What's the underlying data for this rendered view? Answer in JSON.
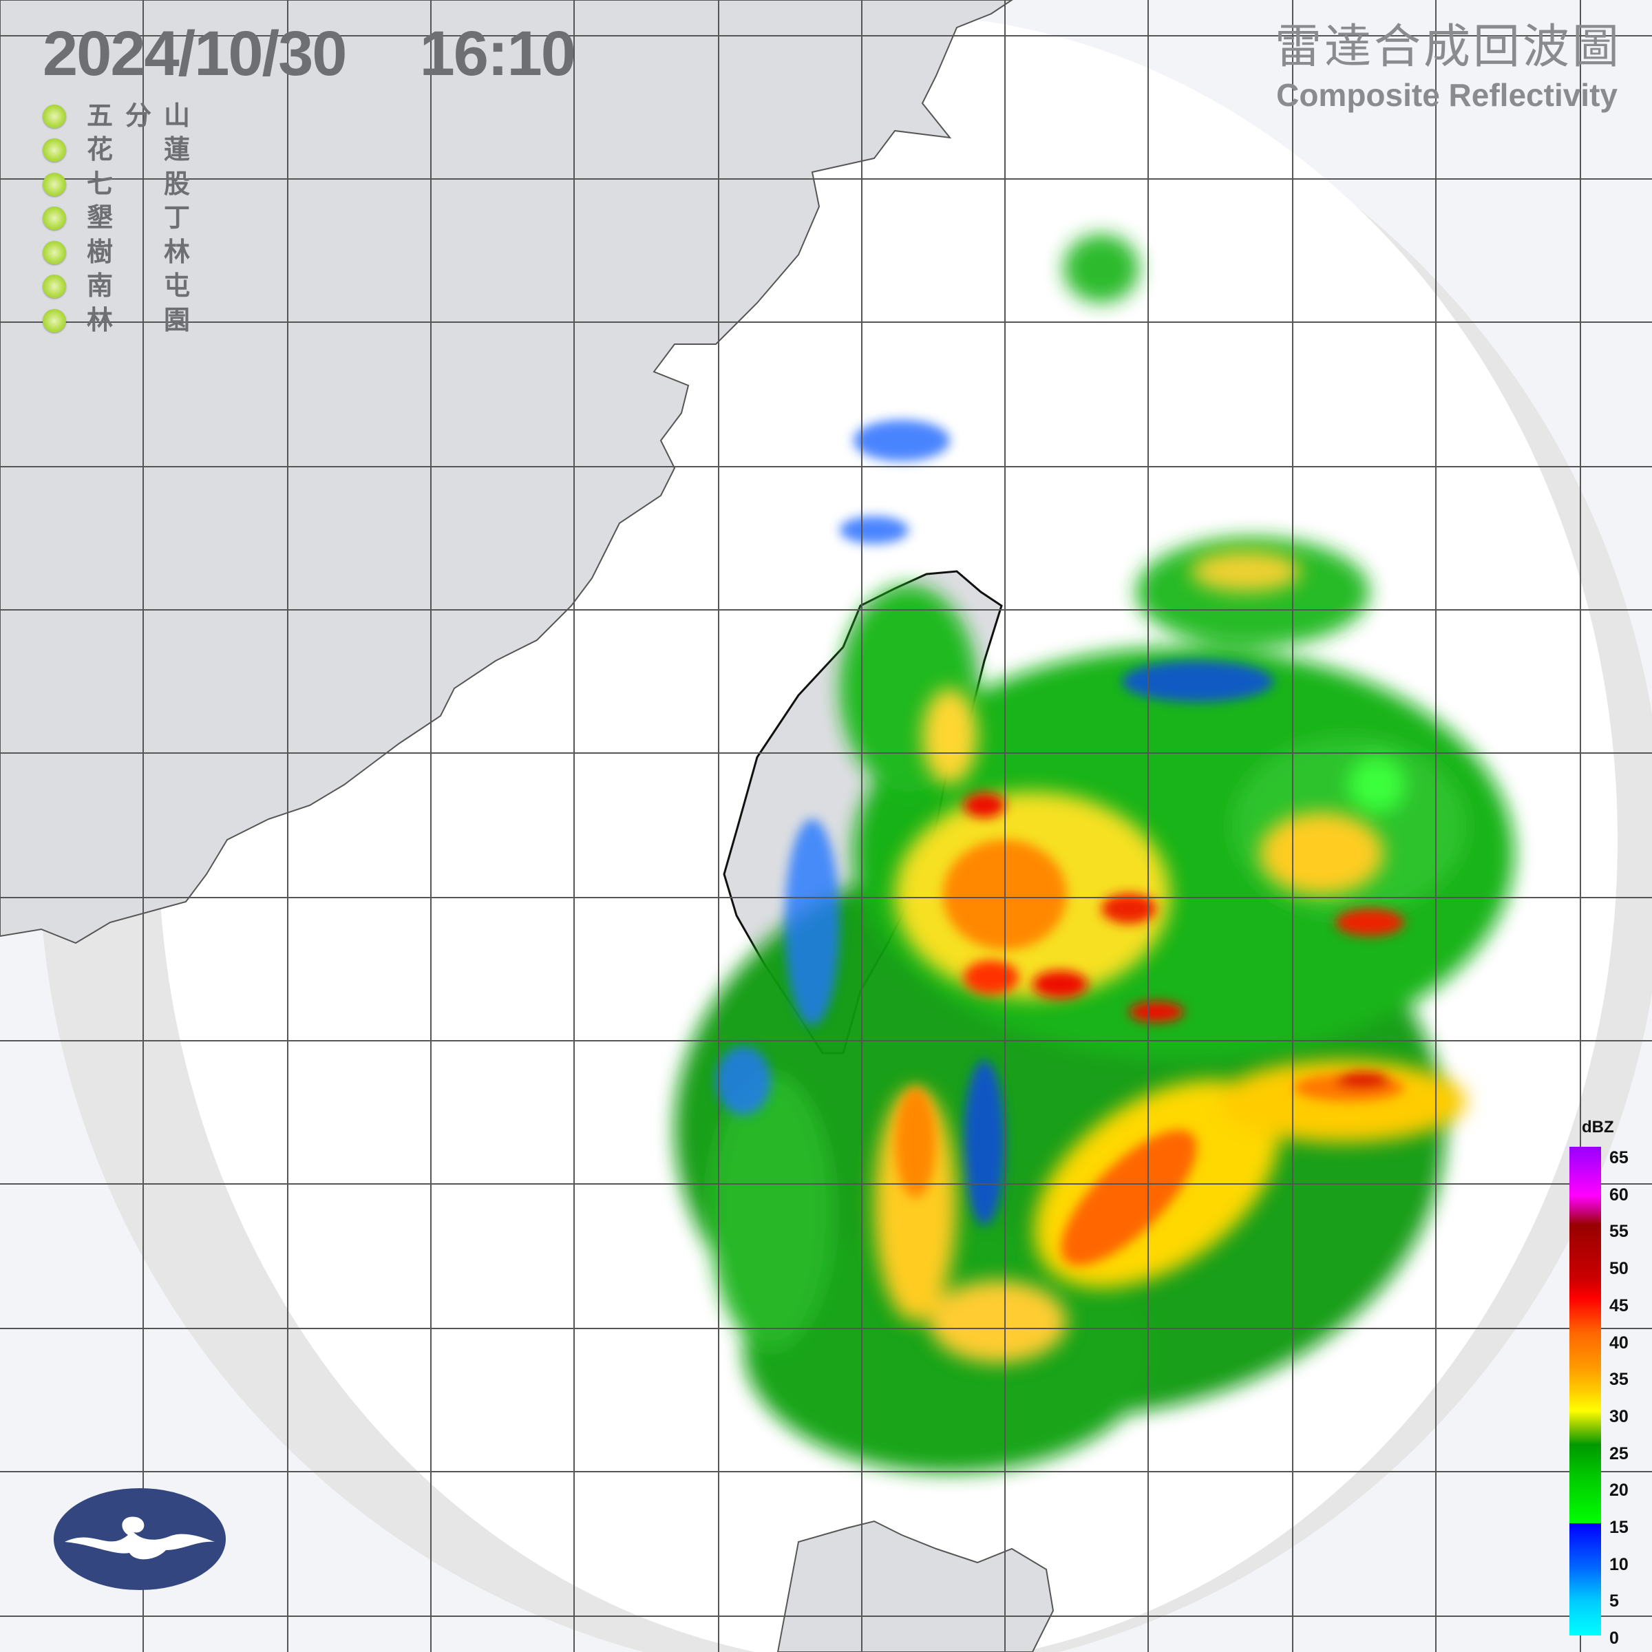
{
  "header": {
    "timestamp": "2024/10/30  16:10",
    "title_zh": "雷達合成回波圖",
    "title_en": "Composite Reflectivity"
  },
  "stations": [
    {
      "first": "五",
      "middle": "分",
      "last": "山",
      "status_color": "#a6d63a"
    },
    {
      "first": "花",
      "middle": "",
      "last": "蓮",
      "status_color": "#a6d63a"
    },
    {
      "first": "七",
      "middle": "",
      "last": "股",
      "status_color": "#a6d63a"
    },
    {
      "first": "墾",
      "middle": "",
      "last": "丁",
      "status_color": "#a6d63a"
    },
    {
      "first": "樹",
      "middle": "",
      "last": "林",
      "status_color": "#a6d63a"
    },
    {
      "first": "南",
      "middle": "",
      "last": "屯",
      "status_color": "#a6d63a"
    },
    {
      "first": "林",
      "middle": "",
      "last": "園",
      "status_color": "#a6d63a"
    }
  ],
  "legend": {
    "unit": "dBZ",
    "ticks": [
      "65",
      "60",
      "55",
      "50",
      "45",
      "40",
      "35",
      "30",
      "25",
      "20",
      "15",
      "10",
      "5",
      "0"
    ],
    "colors": [
      "#9900ff",
      "#ff00ff",
      "#990000",
      "#ff0000",
      "#ff9900",
      "#ffff00",
      "#009900",
      "#00ff00",
      "#0000ff",
      "#00ffff"
    ]
  },
  "colors": {
    "background": "#f3f4f8",
    "radar_coverage": "#ffffff",
    "land": "#dcdde1",
    "logo": "#34467f"
  }
}
